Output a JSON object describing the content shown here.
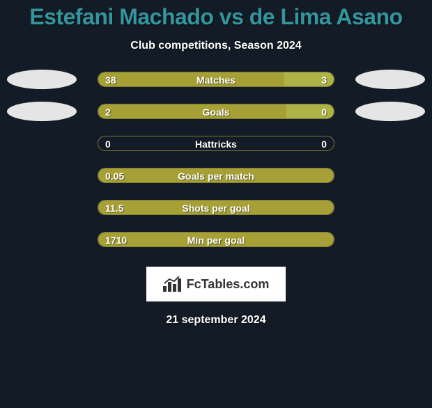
{
  "title": "Estefani Machado vs de Lima Asano",
  "title_color": "#35959d",
  "subtitle": "Club competitions, Season 2024",
  "background_color": "#131c26",
  "bar_color_left": "#a6a036",
  "bar_color_right": "#afb347",
  "bar_border_color": "#7a7a30",
  "text_color": "#ffffff",
  "avatar_bg": "#e5e5e5",
  "logo_text": "FcTables.com",
  "date": "21 september 2024",
  "label_fontsize": 14,
  "value_fontsize": 14,
  "rows": [
    {
      "label": "Matches",
      "left_val": "38",
      "right_val": "3",
      "left_pct": 79,
      "right_pct": 21,
      "show_avatars": true
    },
    {
      "label": "Goals",
      "left_val": "2",
      "right_val": "0",
      "left_pct": 80,
      "right_pct": 20,
      "show_avatars": true
    },
    {
      "label": "Hattricks",
      "left_val": "0",
      "right_val": "0",
      "left_pct": 0,
      "right_pct": 0,
      "show_avatars": false
    },
    {
      "label": "Goals per match",
      "left_val": "0.05",
      "right_val": "",
      "left_pct": 100,
      "right_pct": 0,
      "show_avatars": false
    },
    {
      "label": "Shots per goal",
      "left_val": "11.5",
      "right_val": "",
      "left_pct": 100,
      "right_pct": 0,
      "show_avatars": false
    },
    {
      "label": "Min per goal",
      "left_val": "1710",
      "right_val": "",
      "left_pct": 100,
      "right_pct": 0,
      "show_avatars": false
    }
  ]
}
